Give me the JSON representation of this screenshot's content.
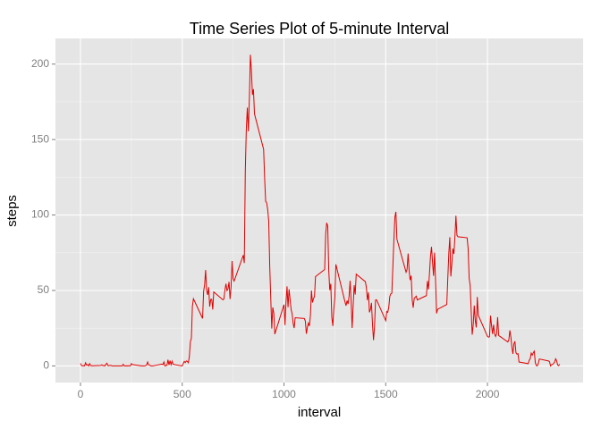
{
  "chart_data": {
    "type": "line",
    "title": "Time Series Plot of 5-minute Interval",
    "x_label": "interval",
    "y_label": "steps",
    "color": "#e00000",
    "grid": true,
    "x": [
      0,
      5,
      10,
      15,
      20,
      25,
      30,
      35,
      40,
      45,
      50,
      55,
      100,
      105,
      110,
      115,
      120,
      125,
      130,
      135,
      140,
      145,
      150,
      155,
      200,
      205,
      210,
      215,
      220,
      225,
      230,
      235,
      240,
      245,
      250,
      255,
      300,
      305,
      310,
      315,
      320,
      325,
      330,
      335,
      340,
      345,
      350,
      355,
      400,
      405,
      410,
      415,
      420,
      425,
      430,
      435,
      440,
      445,
      450,
      455,
      500,
      505,
      510,
      515,
      520,
      525,
      530,
      535,
      540,
      545,
      550,
      555,
      600,
      605,
      610,
      615,
      620,
      625,
      630,
      635,
      640,
      645,
      650,
      655,
      700,
      705,
      710,
      715,
      720,
      725,
      730,
      735,
      740,
      745,
      750,
      755,
      800,
      805,
      810,
      815,
      820,
      825,
      830,
      835,
      840,
      845,
      850,
      855,
      900,
      905,
      910,
      915,
      920,
      925,
      930,
      935,
      940,
      945,
      950,
      955,
      1000,
      1005,
      1010,
      1015,
      1020,
      1025,
      1030,
      1035,
      1040,
      1045,
      1050,
      1055,
      1100,
      1105,
      1110,
      1115,
      1120,
      1125,
      1130,
      1135,
      1140,
      1145,
      1150,
      1155,
      1200,
      1205,
      1210,
      1215,
      1220,
      1225,
      1230,
      1235,
      1240,
      1245,
      1250,
      1255,
      1300,
      1305,
      1310,
      1315,
      1320,
      1325,
      1330,
      1335,
      1340,
      1345,
      1350,
      1355,
      1400,
      1405,
      1410,
      1415,
      1420,
      1425,
      1430,
      1435,
      1440,
      1445,
      1450,
      1455,
      1500,
      1505,
      1510,
      1515,
      1520,
      1525,
      1530,
      1535,
      1540,
      1545,
      1550,
      1555,
      1600,
      1605,
      1610,
      1615,
      1620,
      1625,
      1630,
      1635,
      1640,
      1645,
      1650,
      1655,
      1700,
      1705,
      1710,
      1715,
      1720,
      1725,
      1730,
      1735,
      1740,
      1745,
      1750,
      1755,
      1800,
      1805,
      1810,
      1815,
      1820,
      1825,
      1830,
      1835,
      1840,
      1845,
      1850,
      1855,
      1900,
      1905,
      1910,
      1915,
      1920,
      1925,
      1930,
      1935,
      1940,
      1945,
      1950,
      1955,
      2000,
      2005,
      2010,
      2015,
      2020,
      2025,
      2030,
      2035,
      2040,
      2045,
      2050,
      2055,
      2100,
      2105,
      2110,
      2115,
      2120,
      2125,
      2130,
      2135,
      2140,
      2145,
      2150,
      2155,
      2200,
      2205,
      2210,
      2215,
      2220,
      2225,
      2230,
      2235,
      2240,
      2245,
      2250,
      2255,
      2300,
      2305,
      2310,
      2315,
      2320,
      2325,
      2330,
      2335,
      2340,
      2345,
      2350,
      2355
    ],
    "values": [
      1.7,
      0.3,
      0.1,
      0.2,
      0.1,
      2.1,
      0.5,
      0.9,
      0,
      1.5,
      0.3,
      0.1,
      0.3,
      0.7,
      0.2,
      0.3,
      0,
      1.1,
      1.8,
      0.2,
      0.2,
      0.4,
      0.3,
      0,
      0,
      0,
      1.1,
      0,
      0,
      0.1,
      0,
      0.2,
      0,
      0,
      1.5,
      0.9,
      0,
      0,
      0,
      0,
      0.2,
      0.6,
      2.6,
      0.7,
      0.5,
      0.1,
      0,
      0,
      1.2,
      0.9,
      2.6,
      0,
      0.3,
      0.4,
      4.1,
      0.7,
      3.5,
      0.8,
      3.1,
      1.1,
      0,
      1.6,
      3,
      2.2,
      3.3,
      3,
      2.1,
      6.1,
      16,
      18.3,
      39.5,
      44.5,
      31.5,
      49.3,
      53.8,
      63.5,
      50,
      47.1,
      52.2,
      39.3,
      44,
      44.2,
      37.4,
      49,
      43.8,
      44.4,
      50.5,
      54.5,
      49.9,
      51,
      55.7,
      44.3,
      52.3,
      69.5,
      57.8,
      56.2,
      73.4,
      68.2,
      129.4,
      157.5,
      171.2,
      155.4,
      177.3,
      206.2,
      195.9,
      179.6,
      183.4,
      167,
      143.5,
      124,
      109.1,
      108.1,
      103.7,
      96,
      66.2,
      45.2,
      24.8,
      38.8,
      35,
      21.1,
      40.6,
      27,
      42.4,
      52.7,
      38.9,
      50.8,
      44.3,
      37.4,
      34.7,
      28.3,
      25.1,
      31.9,
      31.4,
      29.7,
      21.3,
      25.5,
      28.4,
      26.5,
      33.4,
      50,
      42,
      44.6,
      46,
      59.2,
      63.9,
      87.7,
      94.8,
      92.8,
      63.4,
      50.2,
      54.5,
      32.4,
      26.5,
      37.7,
      45.1,
      67.3,
      42.3,
      39.9,
      43.3,
      41,
      46.2,
      56.4,
      42.8,
      25.1,
      40,
      53.5,
      47.3,
      60.8,
      55.8,
      52,
      43.6,
      48.7,
      35.5,
      37.5,
      41.8,
      27.5,
      17.1,
      26.1,
      43.6,
      43.8,
      30,
      36.1,
      35.5,
      38.8,
      46,
      47.8,
      48.1,
      65.3,
      82.9,
      98.7,
      102.1,
      84,
      62.1,
      64.1,
      74.5,
      63.2,
      56.9,
      59.8,
      43.9,
      38.6,
      44.7,
      45.5,
      46.2,
      43.7,
      46.6,
      56.3,
      50.7,
      61.2,
      72.7,
      78.9,
      68.9,
      59.7,
      75.1,
      56.5,
      34.8,
      37.5,
      40.7,
      58,
      74.7,
      85.3,
      59.3,
      67.8,
      77.7,
      74.2,
      85.3,
      99.5,
      86.6,
      85.6,
      84.9,
      77.8,
      58,
      53.4,
      36.3,
      20.7,
      27.4,
      40,
      30.2,
      25.5,
      45.7,
      33.5,
      19.6,
      19,
      19.3,
      33.3,
      26.8,
      21.2,
      27.3,
      21.3,
      19.5,
      21.3,
      32.3,
      20.2,
      15.9,
      17.2,
      23.5,
      19.2,
      12.5,
      8,
      14.7,
      16.3,
      8.7,
      7.8,
      8.1,
      2.6,
      1.5,
      3.7,
      4.8,
      8.5,
      7.1,
      8.7,
      9.8,
      2.2,
      0.3,
      0.1,
      1.6,
      4.6,
      3.3,
      2.8,
      0,
      0.8,
      1,
      1.6,
      2.6,
      4.7,
      3.3,
      0.6,
      0.2,
      1.1
    ],
    "xlim": [
      -123,
      2470
    ],
    "ylim": [
      -11,
      217
    ],
    "xticks": [
      0,
      500,
      1000,
      1500,
      2000
    ],
    "yticks": [
      0,
      50,
      100,
      150,
      200
    ]
  }
}
